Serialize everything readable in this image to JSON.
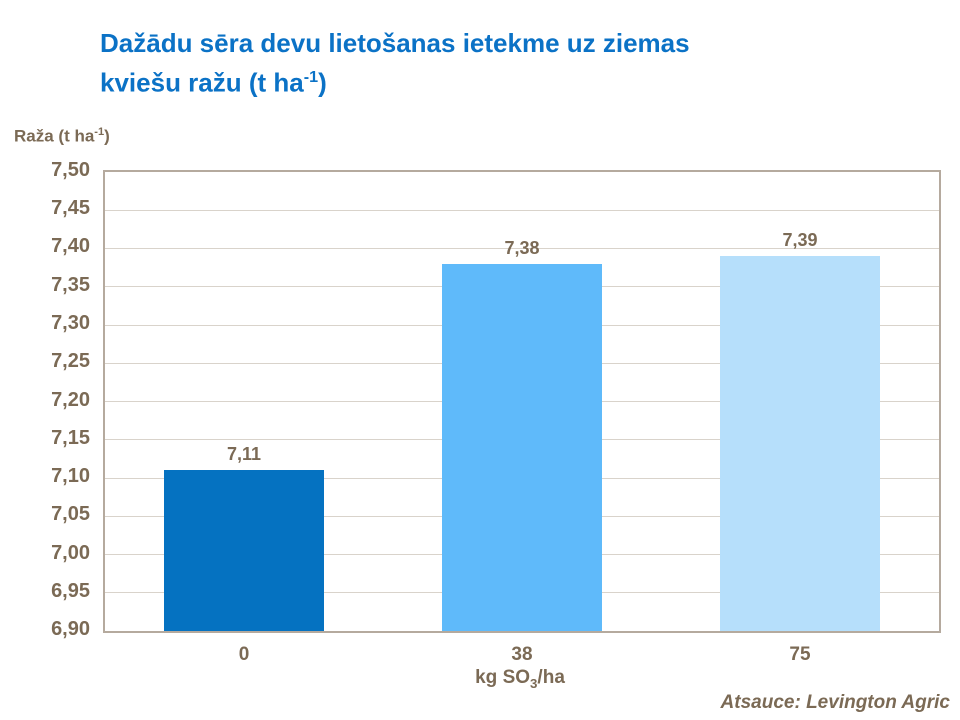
{
  "chart_data": {
    "type": "bar",
    "title": "Dažādu sēra devu lietošanas ietekme uz ziemas kviešu ražu (t ha⁻¹)",
    "ylabel": "Raža (t ha⁻¹)",
    "xlabel": "kg SO₃/ha",
    "categories": [
      "0",
      "38",
      "75"
    ],
    "values": [
      7.11,
      7.38,
      7.39
    ],
    "value_labels": [
      "7,11",
      "7,38",
      "7,39"
    ],
    "bar_colors": [
      "#0572C1",
      "#5FBAFA",
      "#B6DFFB"
    ],
    "ylim": [
      6.9,
      7.5
    ],
    "ytick_values": [
      7.5,
      7.45,
      7.4,
      7.35,
      7.3,
      7.25,
      7.2,
      7.15,
      7.1,
      7.05,
      7.0,
      6.95,
      6.9
    ],
    "ytick_labels": [
      "7,50",
      "7,45",
      "7,40",
      "7,35",
      "7,30",
      "7,25",
      "7,20",
      "7,15",
      "7,10",
      "7,05",
      "7,00",
      "6,95",
      "6,90"
    ],
    "grid": true,
    "legend": false,
    "source": "Atsauce: Levington Agric"
  },
  "display": {
    "title_line1": "Dažādu sēra devu lietošanas ietekme uz ziemas",
    "title_line2_pre": "kviešu ražu (t ha",
    "title_line2_sup": "-1",
    "title_line2_post": ")",
    "ylabel_pre": "Raža (t ha",
    "ylabel_sup": "-1",
    "ylabel_post": ")",
    "xlabel_pre": "kg SO",
    "xlabel_sub": "3",
    "xlabel_post": "/ha",
    "source": "Atsauce: Levington Agric"
  },
  "colors": {
    "title_text": "#0B72C6",
    "axis_text": "#7B6A55",
    "plot_border": "#B5AA9E",
    "gridline": "#D9D3CB",
    "background": "#FFFFFF"
  }
}
